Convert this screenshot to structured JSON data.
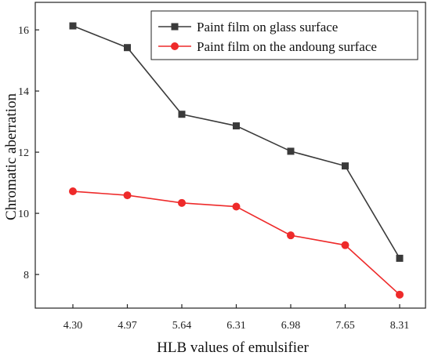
{
  "chart_data": {
    "type": "line",
    "categories": [
      "4.30",
      "4.97",
      "5.64",
      "6.31",
      "6.98",
      "7.65",
      "8.31"
    ],
    "series": [
      {
        "name": "Paint film on glass surface",
        "color": "#3a3a3a",
        "marker": "square",
        "values": [
          16.13,
          15.42,
          13.24,
          12.86,
          12.03,
          11.55,
          8.53
        ]
      },
      {
        "name": "Paint film on the andoung surface",
        "color": "#ee2a2a",
        "marker": "circle",
        "values": [
          10.72,
          10.59,
          10.34,
          10.22,
          9.28,
          8.96,
          7.34
        ]
      }
    ],
    "xlabel": "HLB values of emulsifier",
    "ylabel": "Chromatic aberration",
    "ylim": [
      6.9,
      16.9
    ],
    "yticks": [
      "8",
      "10",
      "12",
      "14",
      "16"
    ],
    "legend_position": "top-right",
    "grid": false
  }
}
